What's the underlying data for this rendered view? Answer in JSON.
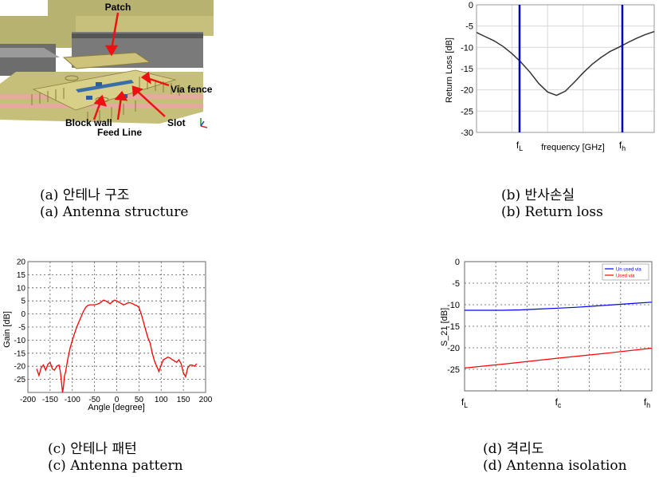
{
  "captions": {
    "a_ko": "(a) 안테나 구조",
    "a_en": "(a) Antenna structure",
    "b_ko": "(b) 반사손실",
    "b_en": "(b) Return loss",
    "c_ko": "(c) 안테나 패턴",
    "c_en": "(c) Antenna pattern",
    "d_ko": "(d) 격리도",
    "d_en": "(d) Antenna isolation"
  },
  "structure_labels": {
    "patch": "Patch",
    "via_fence": "Via fence",
    "block_wall": "Block wall",
    "slot": "Slot",
    "feed_line": "Feed Line"
  },
  "colors": {
    "return_loss_curve": "#333333",
    "marker_line": "#0000bb",
    "pattern_curve": "#ff0000",
    "unused_via": "#0000ff",
    "used_via": "#ff0000"
  },
  "chart_data": [
    {
      "id": "return_loss",
      "type": "line",
      "ylabel": "Return Loss [dB]",
      "xlabel": "frequency [GHz]",
      "ylim": [
        -30,
        0
      ],
      "yticks": [
        "0",
        "-5",
        "-10",
        "-15",
        "-20",
        "-25",
        "-30"
      ],
      "xticks": [
        {
          "base": "f",
          "sub": "L"
        },
        {
          "base": "f",
          "sub": "h"
        }
      ],
      "grid": true,
      "series": [
        {
          "x": [
            0,
            0.05,
            0.1,
            0.15,
            0.2,
            0.25,
            0.3,
            0.35,
            0.4,
            0.45,
            0.5,
            0.55,
            0.6,
            0.65,
            0.7,
            0.75,
            0.8,
            0.85,
            0.9,
            0.95,
            1.0
          ],
          "y": [
            -6.5,
            -7.5,
            -8.5,
            -9.8,
            -11.5,
            -13.5,
            -15.8,
            -18.5,
            -20.5,
            -21.3,
            -20.3,
            -18.2,
            -16.0,
            -14.0,
            -12.4,
            -11.0,
            -10.0,
            -8.9,
            -7.9,
            -7.0,
            -6.3
          ]
        }
      ]
    },
    {
      "id": "pattern",
      "type": "line",
      "ylabel": "Gain [dB]",
      "xlabel": "Angle [degree]",
      "xlim": [
        -200,
        200
      ],
      "ylim": [
        -30,
        20
      ],
      "xticks": [
        "-200",
        "-150",
        "-100",
        "-50",
        "0",
        "50",
        "100",
        "150",
        "200"
      ],
      "yticks": [
        "20",
        "15",
        "10",
        "5",
        "0",
        "-5",
        "-10",
        "-15",
        "-20",
        "-25"
      ],
      "grid": true,
      "series": [
        {
          "x": [
            -180,
            -175,
            -170,
            -165,
            -160,
            -155,
            -150,
            -145,
            -140,
            -135,
            -130,
            -127,
            -125,
            -122,
            -120,
            -118,
            -115,
            -110,
            -105,
            -100,
            -95,
            -90,
            -85,
            -80,
            -75,
            -70,
            -65,
            -60,
            -55,
            -50,
            -45,
            -40,
            -35,
            -30,
            -25,
            -20,
            -15,
            -10,
            -5,
            0,
            5,
            10,
            15,
            20,
            25,
            30,
            35,
            40,
            45,
            50,
            55,
            60,
            65,
            70,
            75,
            80,
            85,
            90,
            95,
            100,
            105,
            110,
            115,
            120,
            125,
            130,
            135,
            140,
            145,
            150,
            155,
            160,
            165,
            170,
            175,
            180
          ],
          "y": [
            -21,
            -23.5,
            -20.5,
            -19.5,
            -21.5,
            -19.2,
            -18.5,
            -21,
            -21.5,
            -20,
            -19.5,
            -22,
            -25,
            -30,
            -28,
            -24,
            -22,
            -17,
            -13,
            -10,
            -7.5,
            -5,
            -3,
            -1,
            1,
            2.5,
            3.3,
            3.5,
            3.5,
            3.5,
            3.7,
            4,
            4.5,
            5.3,
            5.0,
            4.5,
            3.9,
            4.6,
            5.3,
            5.0,
            4.5,
            4.0,
            3.5,
            3.8,
            4.2,
            4.3,
            4.0,
            3.5,
            3.2,
            2.5,
            0,
            -3,
            -6,
            -9,
            -11,
            -15,
            -18,
            -20,
            -22,
            -19.5,
            -17.5,
            -17,
            -16.5,
            -16.8,
            -17.5,
            -18,
            -18.5,
            -17.5,
            -19,
            -22.5,
            -24,
            -20.5,
            -19.5,
            -19.5,
            -20,
            -19
          ]
        }
      ]
    },
    {
      "id": "isolation",
      "type": "line",
      "ylabel": "S_21 [dB]",
      "ylim": [
        -30,
        0
      ],
      "yticks": [
        "0",
        "-5",
        "-10",
        "-15",
        "-20",
        "-25"
      ],
      "xticks": [
        {
          "base": "f",
          "sub": "L"
        },
        {
          "base": "f",
          "sub": "c"
        },
        {
          "base": "f",
          "sub": "h"
        }
      ],
      "grid": true,
      "legend": "top-right",
      "series": [
        {
          "name": "Un used via",
          "x": [
            0,
            0.1,
            0.2,
            0.3,
            0.4,
            0.5,
            0.6,
            0.7,
            0.8,
            0.9,
            1.0
          ],
          "y": [
            -11.3,
            -11.3,
            -11.3,
            -11.2,
            -11.0,
            -10.8,
            -10.6,
            -10.3,
            -10.0,
            -9.7,
            -9.4
          ]
        },
        {
          "name": "Used via",
          "x": [
            0,
            0.25,
            0.5,
            0.75,
            1.0
          ],
          "y": [
            -24.7,
            -23.6,
            -22.4,
            -21.3,
            -20.1
          ]
        }
      ]
    }
  ]
}
